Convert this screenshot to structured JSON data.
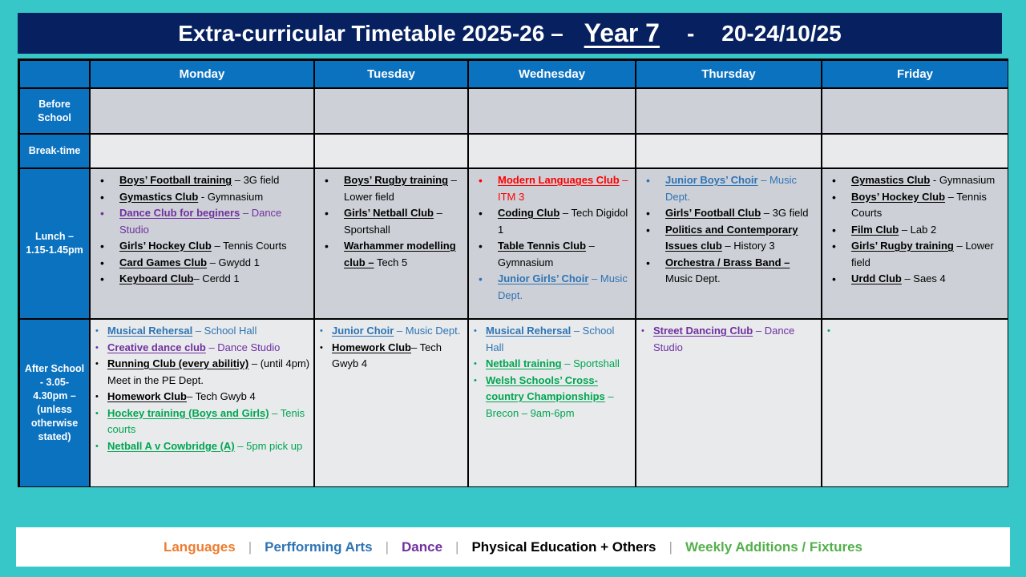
{
  "title": {
    "prefix": "Extra-curricular Timetable 2025-26 –",
    "year": "Year 7",
    "dash": "-",
    "date": "20-24/10/25"
  },
  "colors": {
    "slide_background": "#38C7C9",
    "title_bar": "#062060",
    "header_blue": "#0B72C0",
    "band_dark": "#CDD0D6",
    "band_light": "#E8EAEC",
    "category_languages": "#FF0000",
    "category_performing_arts": "#2E74B5",
    "category_dance": "#7030A0",
    "category_pe_others": "#000000",
    "category_weekly": "#00A651"
  },
  "table": {
    "corner": "",
    "days": [
      "Monday",
      "Tuesday",
      "Wednesday",
      "Thursday",
      "Friday"
    ],
    "rows": [
      {
        "label": "Before School",
        "kind": "dark",
        "cells": [
          [],
          [],
          [],
          [],
          []
        ]
      },
      {
        "label": "Break-time",
        "kind": "light",
        "cells": [
          [],
          [],
          [],
          [],
          []
        ]
      },
      {
        "label": "Lunch – 1.15-1.45pm",
        "kind": "dark",
        "cells": [
          [
            {
              "name": "Boys’ Football training",
              "rest": " – 3G field",
              "color": "#000000"
            },
            {
              "name": "Gymastics Club",
              "rest": " - Gymnasium",
              "color": "#000000"
            },
            {
              "name": "Dance Club for beginers",
              "rest": " – Dance Studio",
              "color": "#7030A0"
            },
            {
              "name": "Girls’ Hockey Club",
              "rest": " – Tennis Courts",
              "color": "#000000"
            },
            {
              "name": "Card Games Club",
              "rest": " – Gwydd 1",
              "color": "#000000"
            },
            {
              "name": "Keyboard Club",
              "rest": "– Cerdd 1",
              "color": "#000000"
            }
          ],
          [
            {
              "name": "Boys’ Rugby training",
              "rest": " – Lower field",
              "color": "#000000"
            },
            {
              "name": "Girls’ Netball Club",
              "rest": " – Sportshall",
              "color": "#000000"
            },
            {
              "name": "Warhammer modelling club –",
              "rest": " Tech 5",
              "color": "#000000"
            }
          ],
          [
            {
              "name": "Modern Languages Club",
              "rest": " – ITM 3",
              "color": "#FF0000"
            },
            {
              "name": "Coding Club",
              "rest": " – Tech Digidol 1",
              "color": "#000000"
            },
            {
              "name": "Table Tennis Club",
              "rest": " – Gymnasium",
              "color": "#000000"
            },
            {
              "name": "Junior Girls’ Choir",
              "rest": " – Music Dept.",
              "color": "#2E74B5"
            }
          ],
          [
            {
              "name": "Junior Boys’ Choir",
              "rest": " – Music Dept.",
              "color": "#2E74B5"
            },
            {
              "name": "Girls’ Football Club",
              "rest": " – 3G field",
              "color": "#000000"
            },
            {
              "name": "Politics and Contemporary Issues club",
              "rest": " – History 3",
              "color": "#000000"
            },
            {
              "name": "Orchestra / Brass Band –",
              "rest": " Music Dept.",
              "color": "#000000"
            }
          ],
          [
            {
              "name": "Gymastics Club",
              "rest": " - Gymnasium",
              "color": "#000000"
            },
            {
              "name": "Boys’ Hockey Club",
              "rest": " – Tennis Courts",
              "color": "#000000"
            },
            {
              "name": "Film Club",
              "rest": " – Lab 2",
              "color": "#000000"
            },
            {
              "name": "Girls’ Rugby training",
              "rest": " – Lower field",
              "color": "#000000"
            },
            {
              "name": "Urdd Club",
              "rest": " – Saes 4",
              "color": "#000000"
            }
          ]
        ]
      },
      {
        "label": "After School - 3.05-4.30pm – (unless otherwise stated)",
        "kind": "light",
        "cells": [
          [
            {
              "name": "Musical Rehersal",
              "rest": " – School Hall",
              "color": "#2E74B5"
            },
            {
              "name": "Creative dance club",
              "rest": " – Dance Studio",
              "color": "#7030A0"
            },
            {
              "name": "Running Club (every abilitiy)",
              "rest": " – (until 4pm) Meet in the PE Dept.",
              "color": "#000000"
            },
            {
              "name": "Homework Club",
              "rest": "– Tech Gwyb 4",
              "color": "#000000"
            },
            {
              "name": "Hockey training (Boys and Girls)",
              "rest": " – Tenis courts",
              "color": "#00A651"
            },
            {
              "name": "Netball A v Cowbridge (A)",
              "rest": " – 5pm pick up",
              "color": "#00A651"
            }
          ],
          [
            {
              "name": "Junior Choir",
              "rest": " – Music Dept.",
              "color": "#2E74B5"
            },
            {
              "name": "Homework Club",
              "rest": "– Tech Gwyb 4",
              "color": "#000000"
            }
          ],
          [
            {
              "name": "Musical Rehersal",
              "rest": " – School Hall",
              "color": "#2E74B5"
            },
            {
              "name": "Netball training",
              "rest": " – Sportshall",
              "color": "#00A651"
            },
            {
              "name": "Welsh Schools’ Cross-country Championships",
              "rest": " – Brecon – 9am-6pm",
              "color": "#00A651"
            }
          ],
          [
            {
              "name": "Street Dancing Club",
              "rest": " – Dance Studio",
              "color": "#7030A0"
            }
          ],
          [
            {
              "name": "",
              "rest": "",
              "color": "#00A651"
            }
          ]
        ]
      }
    ]
  },
  "legend": {
    "separator": "|",
    "items": [
      {
        "label": "Languages",
        "color": "#ED7D31"
      },
      {
        "label": "Perfforming Arts",
        "color": "#2E74B5"
      },
      {
        "label": "Dance",
        "color": "#7030A0"
      },
      {
        "label": "Physical Education + Others",
        "color": "#000000"
      },
      {
        "label": "Weekly Additions / Fixtures",
        "color": "#54B04C"
      }
    ]
  }
}
